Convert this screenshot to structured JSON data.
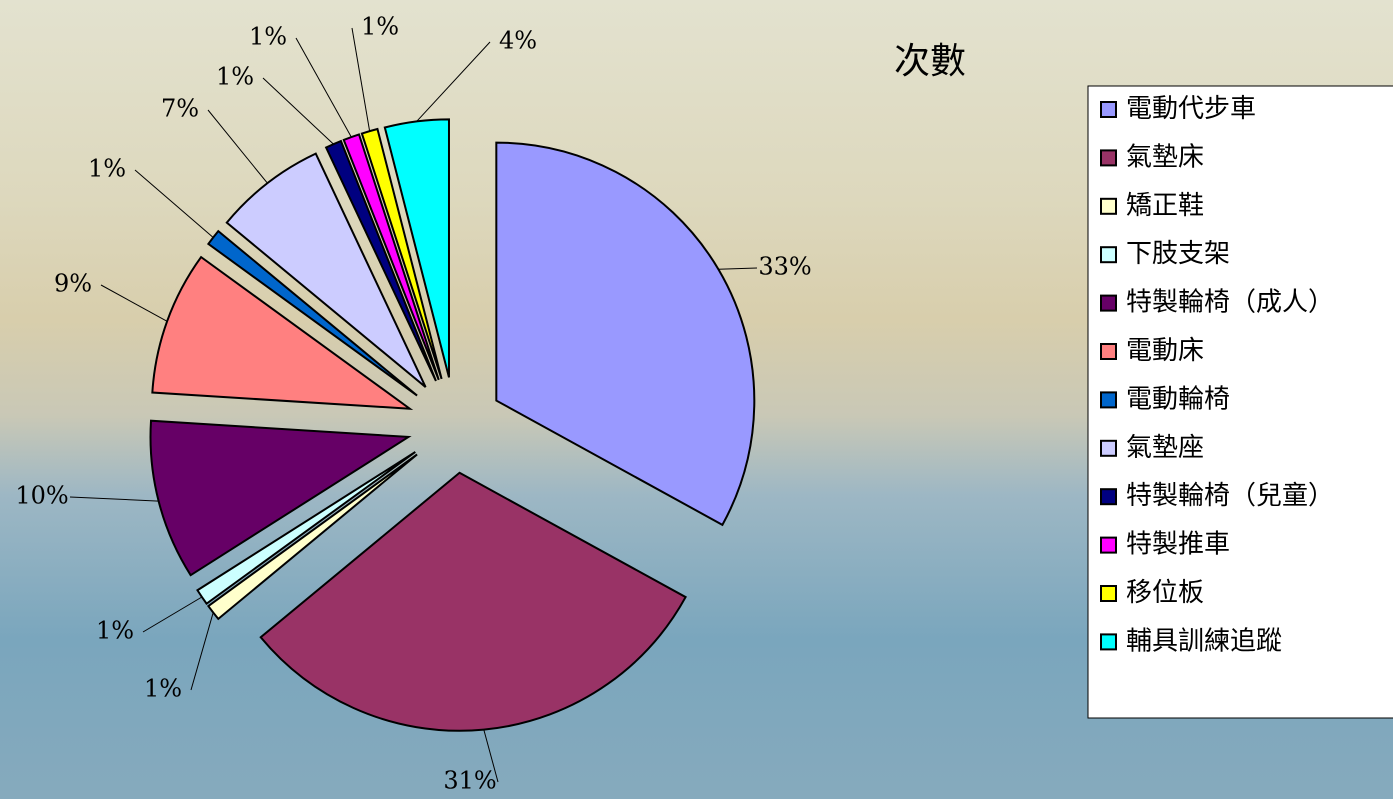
{
  "chart_data": {
    "type": "pie",
    "title": "次數",
    "categories": [
      "電動代步車",
      "氣墊床",
      "矯正鞋",
      "下肢支架",
      "特製輪椅（成人）",
      "電動床",
      "電動輪椅",
      "氣墊座",
      "特製輪椅（兒童）",
      "特製推車",
      "移位板",
      "輔具訓練追蹤"
    ],
    "values": [
      33,
      31,
      1,
      1,
      10,
      9,
      1,
      7,
      1,
      1,
      1,
      4
    ],
    "value_labels": [
      "33%",
      "31%",
      "1%",
      "1%",
      "10%",
      "9%",
      "1%",
      "7%",
      "1%",
      "1%",
      "1%",
      "4%"
    ],
    "colors": [
      "#9999ff",
      "#993366",
      "#ffffcc",
      "#ccffff",
      "#660066",
      "#ff8080",
      "#0066cc",
      "#ccccff",
      "#000080",
      "#ff00ff",
      "#ffff00",
      "#00ffff"
    ],
    "legend": "right"
  }
}
